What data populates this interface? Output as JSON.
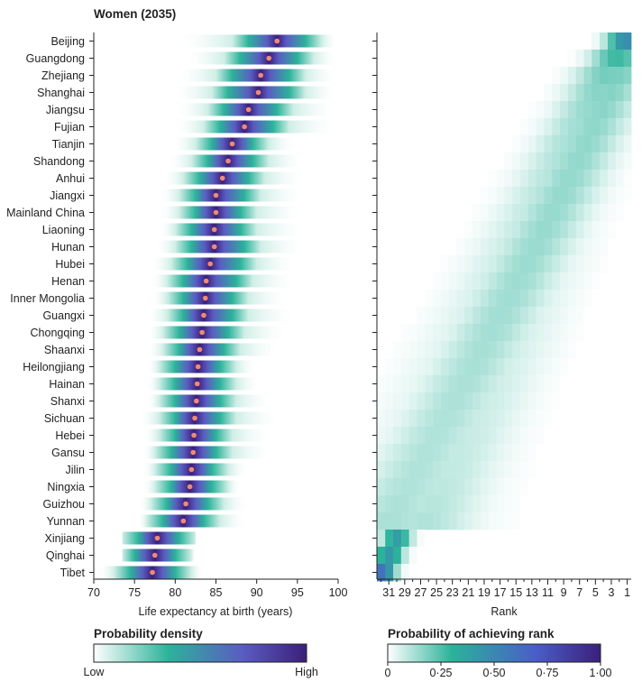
{
  "chart_data": [
    {
      "type": "heatmap",
      "panel": "left",
      "title": "Women (2035)",
      "xlabel": "Life expectancy at birth (years)",
      "xlim": [
        70,
        100
      ],
      "xticks": [
        70,
        75,
        80,
        85,
        90,
        95,
        100
      ],
      "provinces": [
        {
          "name": "Beijing",
          "mean": 92.5,
          "lo": 89.0,
          "hi": 96.0,
          "span_lo": 80.0,
          "span_hi": 100.0
        },
        {
          "name": "Guangdong",
          "mean": 91.5,
          "lo": 88.0,
          "hi": 95.0,
          "span_lo": 81.0,
          "span_hi": 100.0
        },
        {
          "name": "Zhejiang",
          "mean": 90.5,
          "lo": 87.0,
          "hi": 94.0,
          "span_lo": 80.0,
          "span_hi": 100.0
        },
        {
          "name": "Shanghai",
          "mean": 90.2,
          "lo": 86.5,
          "hi": 94.0,
          "span_lo": 79.5,
          "span_hi": 100.0
        },
        {
          "name": "Jiangsu",
          "mean": 89.0,
          "lo": 86.0,
          "hi": 92.5,
          "span_lo": 80.0,
          "span_hi": 100.0
        },
        {
          "name": "Fujian",
          "mean": 88.5,
          "lo": 85.5,
          "hi": 92.0,
          "span_lo": 80.0,
          "span_hi": 100.0
        },
        {
          "name": "Tianjin",
          "mean": 87.0,
          "lo": 84.5,
          "hi": 89.5,
          "span_lo": 79.5,
          "span_hi": 95.0
        },
        {
          "name": "Shandong",
          "mean": 86.5,
          "lo": 84.0,
          "hi": 89.5,
          "span_lo": 79.0,
          "span_hi": 96.0
        },
        {
          "name": "Anhui",
          "mean": 85.8,
          "lo": 83.0,
          "hi": 89.0,
          "span_lo": 78.5,
          "span_hi": 96.0
        },
        {
          "name": "Jiangxi",
          "mean": 85.0,
          "lo": 82.5,
          "hi": 88.5,
          "span_lo": 78.0,
          "span_hi": 96.0
        },
        {
          "name": "Mainland China",
          "mean": 85.0,
          "lo": 82.5,
          "hi": 88.0,
          "span_lo": 78.0,
          "span_hi": 96.0
        },
        {
          "name": "Liaoning",
          "mean": 84.8,
          "lo": 82.0,
          "hi": 88.0,
          "span_lo": 78.0,
          "span_hi": 96.0
        },
        {
          "name": "Hunan",
          "mean": 84.8,
          "lo": 82.0,
          "hi": 88.5,
          "span_lo": 77.5,
          "span_hi": 96.0
        },
        {
          "name": "Hubei",
          "mean": 84.3,
          "lo": 81.5,
          "hi": 88.0,
          "span_lo": 77.0,
          "span_hi": 95.0
        },
        {
          "name": "Henan",
          "mean": 83.8,
          "lo": 81.0,
          "hi": 87.5,
          "span_lo": 77.0,
          "span_hi": 95.0
        },
        {
          "name": "Inner Mongolia",
          "mean": 83.7,
          "lo": 81.0,
          "hi": 87.0,
          "span_lo": 77.0,
          "span_hi": 94.0
        },
        {
          "name": "Guangxi",
          "mean": 83.5,
          "lo": 81.0,
          "hi": 87.0,
          "span_lo": 76.5,
          "span_hi": 95.0
        },
        {
          "name": "Chongqing",
          "mean": 83.3,
          "lo": 80.5,
          "hi": 86.5,
          "span_lo": 76.5,
          "span_hi": 94.0
        },
        {
          "name": "Shaanxi",
          "mean": 83.0,
          "lo": 80.5,
          "hi": 86.0,
          "span_lo": 76.5,
          "span_hi": 93.0
        },
        {
          "name": "Heilongjiang",
          "mean": 82.8,
          "lo": 80.0,
          "hi": 85.5,
          "span_lo": 76.5,
          "span_hi": 90.0
        },
        {
          "name": "Hainan",
          "mean": 82.7,
          "lo": 80.0,
          "hi": 85.5,
          "span_lo": 76.5,
          "span_hi": 90.5
        },
        {
          "name": "Shanxi",
          "mean": 82.6,
          "lo": 80.0,
          "hi": 85.5,
          "span_lo": 76.5,
          "span_hi": 92.0
        },
        {
          "name": "Sichuan",
          "mean": 82.4,
          "lo": 80.0,
          "hi": 85.5,
          "span_lo": 75.5,
          "span_hi": 93.0
        },
        {
          "name": "Hebei",
          "mean": 82.3,
          "lo": 80.0,
          "hi": 85.0,
          "span_lo": 76.0,
          "span_hi": 92.0
        },
        {
          "name": "Gansu",
          "mean": 82.2,
          "lo": 79.5,
          "hi": 85.0,
          "span_lo": 76.0,
          "span_hi": 92.0
        },
        {
          "name": "Jilin",
          "mean": 82.0,
          "lo": 79.5,
          "hi": 84.5,
          "span_lo": 76.0,
          "span_hi": 89.0
        },
        {
          "name": "Ningxia",
          "mean": 81.8,
          "lo": 79.5,
          "hi": 84.5,
          "span_lo": 76.0,
          "span_hi": 88.0
        },
        {
          "name": "Guizhou",
          "mean": 81.3,
          "lo": 79.0,
          "hi": 84.0,
          "span_lo": 75.5,
          "span_hi": 89.0
        },
        {
          "name": "Yunnan",
          "mean": 81.0,
          "lo": 78.5,
          "hi": 83.5,
          "span_lo": 75.5,
          "span_hi": 89.0
        },
        {
          "name": "Xinjiang",
          "mean": 77.8,
          "lo": 75.5,
          "hi": 80.5,
          "span_lo": 73.5,
          "span_hi": 82.5
        },
        {
          "name": "Qinghai",
          "mean": 77.5,
          "lo": 75.0,
          "hi": 80.0,
          "span_lo": 73.5,
          "span_hi": 82.5
        },
        {
          "name": "Tibet",
          "mean": 77.2,
          "lo": 74.5,
          "hi": 80.0,
          "span_lo": 70.5,
          "span_hi": 83.5
        }
      ],
      "colorbar": {
        "title": "Probability density",
        "min_label": "Low",
        "max_label": "High"
      }
    },
    {
      "type": "heatmap",
      "panel": "right",
      "xlabel": "Rank",
      "xlim": [
        32,
        1
      ],
      "xticks": [
        31,
        29,
        27,
        25,
        23,
        21,
        19,
        17,
        15,
        13,
        11,
        9,
        7,
        5,
        3,
        1
      ],
      "colorbar": {
        "title": "Probability of achieving rank",
        "ticks": [
          "0",
          "0·25",
          "0·50",
          "0·75",
          "1·00"
        ]
      }
    }
  ],
  "colors": {
    "dot": "#f08a74",
    "cb_left": [
      "#ffffff",
      "#2bb39a",
      "#5a5cc2",
      "#3b1f7a"
    ],
    "cb_right": [
      "#ffffff",
      "#2bb39a",
      "#4a5cc8",
      "#3b1f7a"
    ]
  }
}
